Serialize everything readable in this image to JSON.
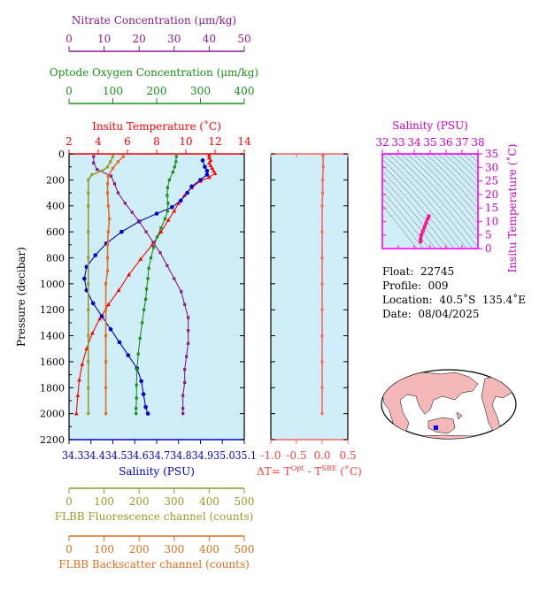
{
  "chart_data": [
    {
      "type": "line",
      "id": "main-profile",
      "ylabel": "Pressure (decibar)",
      "ylim": [
        2200,
        0
      ],
      "yticks": [
        0,
        200,
        400,
        600,
        800,
        1000,
        1200,
        1400,
        1600,
        1800,
        2000,
        2200
      ],
      "grid": false,
      "axes": {
        "nitrate": {
          "label": "Nitrate Concentration (μm/kg)",
          "range": [
            0,
            50
          ],
          "ticks": [
            0,
            10,
            20,
            30,
            40,
            50
          ],
          "color": "#8b1a8b"
        },
        "oxygen": {
          "label": "Optode Oxygen Concentration (μm/kg)",
          "range": [
            0,
            400
          ],
          "ticks": [
            0,
            100,
            200,
            300,
            400
          ],
          "color": "#1a8f1a"
        },
        "temperature": {
          "label": "Insitu Temperature (˚C)",
          "range": [
            2,
            14
          ],
          "ticks": [
            2,
            4,
            6,
            8,
            10,
            12,
            14
          ],
          "color": "#ff0000"
        },
        "salinity": {
          "label": "Salinity (PSU)",
          "range": [
            34.3,
            35.1
          ],
          "ticks": [
            "34.3",
            "34.4",
            "34.5",
            "34.6",
            "34.7",
            "34.8",
            "34.9",
            "35.0",
            "35.1"
          ],
          "tick_text": "34.334.434.534.634.734.834.935.035.1",
          "color": "#0000cc"
        },
        "fluorescence": {
          "label": "FLBB Fluorescence channel (counts)",
          "range": [
            0,
            500
          ],
          "ticks": [
            0,
            100,
            200,
            300,
            400,
            500
          ],
          "color": "#9a9a2a"
        },
        "backscatter": {
          "label": "FLBB Backscatter channel (counts)",
          "range": [
            0,
            500
          ],
          "ticks": [
            0,
            100,
            200,
            300,
            400,
            500
          ],
          "color": "#e07020"
        }
      },
      "series": [
        {
          "name": "Insitu Temperature",
          "axis": "temperature",
          "color": "#ff0000",
          "points": [
            [
              11.6,
              10
            ],
            [
              11.6,
              30
            ],
            [
              11.7,
              50
            ],
            [
              11.6,
              70
            ],
            [
              11.7,
              90
            ],
            [
              11.8,
              110
            ],
            [
              11.9,
              130
            ],
            [
              12.0,
              150
            ],
            [
              11.6,
              180
            ],
            [
              11.0,
              210
            ],
            [
              10.4,
              260
            ],
            [
              9.9,
              320
            ],
            [
              9.5,
              380
            ],
            [
              9.2,
              440
            ],
            [
              8.8,
              510
            ],
            [
              8.3,
              600
            ],
            [
              7.7,
              700
            ],
            [
              6.9,
              810
            ],
            [
              6.1,
              930
            ],
            [
              5.4,
              1050
            ],
            [
              4.7,
              1160
            ],
            [
              4.1,
              1270
            ],
            [
              3.6,
              1380
            ],
            [
              3.2,
              1500
            ],
            [
              2.9,
              1620
            ],
            [
              2.7,
              1740
            ],
            [
              2.6,
              1860
            ],
            [
              2.5,
              2000
            ]
          ]
        },
        {
          "name": "Salinity",
          "axis": "salinity",
          "color": "#0000cc",
          "points": [
            [
              34.91,
              50
            ],
            [
              34.92,
              100
            ],
            [
              34.93,
              130
            ],
            [
              34.93,
              160
            ],
            [
              34.9,
              200
            ],
            [
              34.86,
              250
            ],
            [
              34.84,
              300
            ],
            [
              34.81,
              360
            ],
            [
              34.77,
              410
            ],
            [
              34.7,
              460
            ],
            [
              34.62,
              520
            ],
            [
              34.54,
              600
            ],
            [
              34.47,
              690
            ],
            [
              34.42,
              780
            ],
            [
              34.38,
              870
            ],
            [
              34.37,
              960
            ],
            [
              34.38,
              1050
            ],
            [
              34.41,
              1150
            ],
            [
              34.45,
              1250
            ],
            [
              34.49,
              1350
            ],
            [
              34.53,
              1450
            ],
            [
              34.57,
              1550
            ],
            [
              34.61,
              1650
            ],
            [
              34.63,
              1750
            ],
            [
              34.64,
              1850
            ],
            [
              34.65,
              1950
            ],
            [
              34.66,
              2000
            ]
          ]
        },
        {
          "name": "Optode Oxygen",
          "axis": "oxygen",
          "color": "#1a8f1a",
          "points": [
            [
              245,
              20
            ],
            [
              244,
              60
            ],
            [
              241,
              100
            ],
            [
              237,
              140
            ],
            [
              229,
              200
            ],
            [
              225,
              260
            ],
            [
              224,
              320
            ],
            [
              226,
              380
            ],
            [
              225,
              440
            ],
            [
              219,
              500
            ],
            [
              210,
              570
            ],
            [
              201,
              640
            ],
            [
              193,
              720
            ],
            [
              187,
              800
            ],
            [
              182,
              880
            ],
            [
              180,
              960
            ],
            [
              177,
              1040
            ],
            [
              175,
              1120
            ],
            [
              171,
              1200
            ],
            [
              167,
              1300
            ],
            [
              162,
              1420
            ],
            [
              158,
              1540
            ],
            [
              155,
              1660
            ],
            [
              154,
              1780
            ],
            [
              154,
              1880
            ],
            [
              153,
              1960
            ],
            [
              153,
              2000
            ]
          ]
        },
        {
          "name": "Nitrate",
          "axis": "nitrate",
          "color": "#8b1a8b",
          "points": [
            [
              7,
              20
            ],
            [
              7,
              70
            ],
            [
              8,
              120
            ],
            [
              12,
              170
            ],
            [
              13,
              230
            ],
            [
              14,
              300
            ],
            [
              16,
              380
            ],
            [
              18,
              450
            ],
            [
              20,
              520
            ],
            [
              22,
              600
            ],
            [
              24,
              680
            ],
            [
              26,
              760
            ],
            [
              28,
              860
            ],
            [
              30,
              960
            ],
            [
              32,
              1060
            ],
            [
              33,
              1160
            ],
            [
              34,
              1260
            ],
            [
              34,
              1360
            ],
            [
              34,
              1460
            ],
            [
              33.5,
              1560
            ],
            [
              33,
              1660
            ],
            [
              33,
              1760
            ],
            [
              32.5,
              1860
            ],
            [
              32.5,
              1960
            ],
            [
              32.5,
              2000
            ]
          ]
        },
        {
          "name": "FLBB Fluorescence",
          "axis": "fluorescence",
          "color": "#9a9a2a",
          "points": [
            [
              125,
              20
            ],
            [
              118,
              60
            ],
            [
              110,
              100
            ],
            [
              95,
              130
            ],
            [
              65,
              160
            ],
            [
              55,
              200
            ],
            [
              55,
              300
            ],
            [
              55,
              400
            ],
            [
              55,
              600
            ],
            [
              55,
              800
            ],
            [
              55,
              1000
            ],
            [
              55,
              1200
            ],
            [
              55,
              1400
            ],
            [
              55,
              1600
            ],
            [
              55,
              1800
            ],
            [
              55,
              2000
            ]
          ]
        },
        {
          "name": "FLBB Backscatter",
          "axis": "backscatter",
          "color": "#e07020",
          "points": [
            [
              155,
              20
            ],
            [
              140,
              60
            ],
            [
              125,
              110
            ],
            [
              112,
              170
            ],
            [
              110,
              230
            ],
            [
              110,
              300
            ],
            [
              112,
              400
            ],
            [
              115,
              500
            ],
            [
              112,
              600
            ],
            [
              110,
              700
            ],
            [
              110,
              800
            ],
            [
              110,
              900
            ],
            [
              105,
              1000
            ],
            [
              105,
              1200
            ],
            [
              105,
              1400
            ],
            [
              105,
              1600
            ],
            [
              105,
              1800
            ],
            [
              105,
              2000
            ]
          ]
        }
      ]
    },
    {
      "type": "line",
      "id": "delta-t",
      "xlabel": "ΔT= T^Opt - T^SBE (˚C)",
      "xlabel_parts": {
        "a": "ΔT= T",
        "b": "Opt",
        "c": " - T",
        "d": "SBE",
        "e": " (˚C)"
      },
      "xlim": [
        -1.0,
        0.5
      ],
      "xticks": [
        "-1.0",
        "-0.5",
        "0.0",
        "0.5"
      ],
      "ylim": [
        2200,
        0
      ],
      "series": [
        {
          "name": "ΔT",
          "color": "#ff6060",
          "points": [
            [
              0.02,
              10
            ],
            [
              0.02,
              100
            ],
            [
              0.01,
              200
            ],
            [
              0.01,
              300
            ],
            [
              0.0,
              400
            ],
            [
              0.0,
              600
            ],
            [
              0.0,
              800
            ],
            [
              0.0,
              1000
            ],
            [
              0.0,
              1200
            ],
            [
              0.0,
              1400
            ],
            [
              0.0,
              1600
            ],
            [
              0.0,
              1800
            ],
            [
              0.0,
              2000
            ]
          ]
        }
      ]
    },
    {
      "type": "scatter",
      "id": "ts-diagram",
      "title": "Salinity (PSU)",
      "xlabel": "Salinity (PSU)",
      "ylabel": "Insitu Temperature (˚C)",
      "xlim": [
        32,
        38
      ],
      "xticks": [
        32,
        33,
        34,
        35,
        36,
        37,
        38
      ],
      "ylim": [
        0,
        35
      ],
      "yticks": [
        0,
        5,
        10,
        15,
        20,
        25,
        30,
        35
      ],
      "series": [
        {
          "name": "T-S",
          "color": "#ff1493",
          "points": [
            [
              34.4,
              2.5
            ],
            [
              34.4,
              3.5
            ],
            [
              34.45,
              5
            ],
            [
              34.55,
              6.5
            ],
            [
              34.65,
              8
            ],
            [
              34.75,
              9.5
            ],
            [
              34.85,
              11
            ],
            [
              34.92,
              12
            ]
          ]
        }
      ]
    }
  ],
  "float_info": {
    "float": "Float:  22745",
    "profile": "Profile:  009",
    "location": "Location:  40.5˚S  135.4˚E",
    "date": "Date:  08/04/2025"
  },
  "map": {
    "marker_color": "#0000ff",
    "land_color": "#f4b8b8"
  }
}
